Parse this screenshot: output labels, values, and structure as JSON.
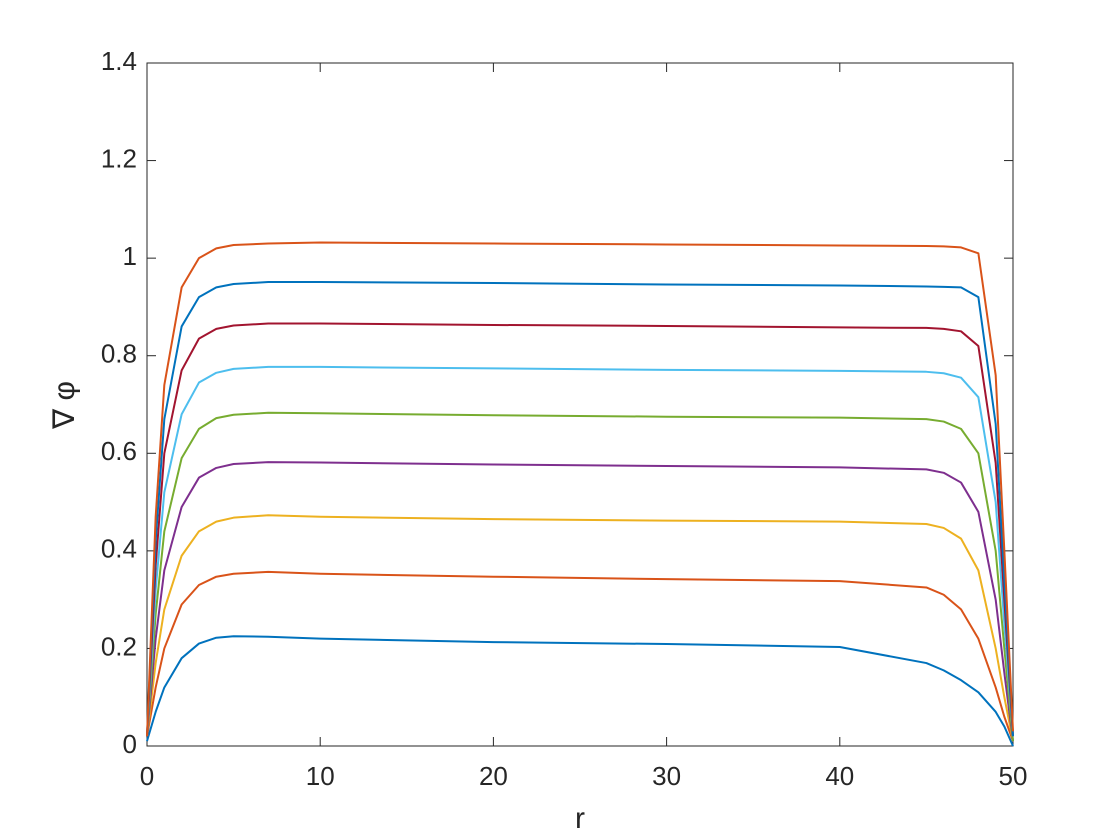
{
  "chart_data": {
    "type": "line",
    "xlabel": "r",
    "ylabel": "∇ φ",
    "x": [
      0,
      0.5,
      1,
      2,
      3,
      4,
      5,
      7,
      10,
      20,
      30,
      40,
      45,
      46,
      47,
      48,
      49,
      49.5,
      50
    ],
    "series": [
      {
        "color": "#0072BD",
        "values": [
          0.01,
          0.07,
          0.12,
          0.18,
          0.21,
          0.222,
          0.225,
          0.224,
          0.22,
          0.213,
          0.209,
          0.203,
          0.17,
          0.155,
          0.135,
          0.11,
          0.07,
          0.04,
          0.0
        ]
      },
      {
        "color": "#D95319",
        "values": [
          0.02,
          0.12,
          0.2,
          0.29,
          0.33,
          0.347,
          0.353,
          0.357,
          0.353,
          0.347,
          0.342,
          0.338,
          0.325,
          0.31,
          0.28,
          0.22,
          0.12,
          0.06,
          0.01
        ]
      },
      {
        "color": "#EDB120",
        "values": [
          0.02,
          0.17,
          0.28,
          0.39,
          0.44,
          0.46,
          0.468,
          0.473,
          0.47,
          0.465,
          0.462,
          0.46,
          0.455,
          0.447,
          0.425,
          0.36,
          0.2,
          0.1,
          0.01
        ]
      },
      {
        "color": "#7E2F8E",
        "values": [
          0.02,
          0.22,
          0.36,
          0.49,
          0.55,
          0.57,
          0.578,
          0.582,
          0.581,
          0.577,
          0.574,
          0.571,
          0.567,
          0.56,
          0.54,
          0.48,
          0.3,
          0.15,
          0.01
        ]
      },
      {
        "color": "#77AC30",
        "values": [
          0.02,
          0.27,
          0.44,
          0.59,
          0.65,
          0.672,
          0.679,
          0.683,
          0.682,
          0.678,
          0.675,
          0.673,
          0.67,
          0.665,
          0.65,
          0.6,
          0.4,
          0.2,
          0.01
        ]
      },
      {
        "color": "#4DBEEE",
        "values": [
          0.02,
          0.32,
          0.52,
          0.68,
          0.745,
          0.765,
          0.773,
          0.777,
          0.777,
          0.774,
          0.771,
          0.769,
          0.767,
          0.764,
          0.755,
          0.715,
          0.5,
          0.25,
          0.02
        ]
      },
      {
        "color": "#A2142F",
        "values": [
          0.02,
          0.37,
          0.6,
          0.77,
          0.835,
          0.855,
          0.862,
          0.866,
          0.866,
          0.863,
          0.861,
          0.858,
          0.857,
          0.855,
          0.85,
          0.82,
          0.58,
          0.3,
          0.02
        ]
      },
      {
        "color": "#0072BD",
        "values": [
          0.02,
          0.42,
          0.67,
          0.86,
          0.92,
          0.94,
          0.947,
          0.951,
          0.951,
          0.949,
          0.946,
          0.944,
          0.942,
          0.941,
          0.94,
          0.92,
          0.66,
          0.34,
          0.02
        ]
      },
      {
        "color": "#D95319",
        "values": [
          0.02,
          0.47,
          0.74,
          0.94,
          1.0,
          1.02,
          1.027,
          1.03,
          1.032,
          1.03,
          1.028,
          1.026,
          1.025,
          1.024,
          1.022,
          1.01,
          0.76,
          0.4,
          0.03
        ]
      }
    ],
    "xlim": [
      0,
      50
    ],
    "xticks": [
      0,
      10,
      20,
      30,
      40,
      50
    ],
    "ylim": [
      0,
      1.4
    ],
    "yticks": [
      0,
      0.2,
      0.4,
      0.6,
      0.8,
      1,
      1.2,
      1.4
    ],
    "grid": false
  }
}
